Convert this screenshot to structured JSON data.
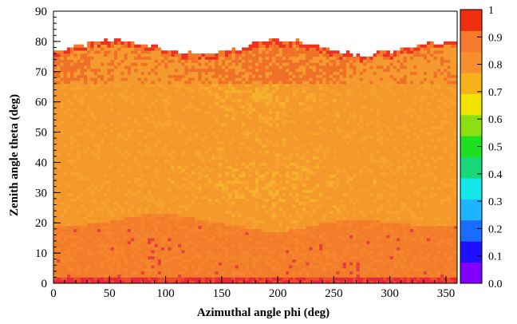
{
  "chart_data": {
    "type": "heatmap",
    "title": "",
    "xlabel": "Azimuthal angle phi (deg)",
    "ylabel": "Zenith angle theta (deg)",
    "xlim": [
      0,
      360
    ],
    "ylim": [
      0,
      90
    ],
    "x_ticks": [
      "0",
      "50",
      "100",
      "150",
      "200",
      "250",
      "300",
      "350"
    ],
    "y_ticks": [
      "0",
      "10",
      "20",
      "30",
      "40",
      "50",
      "60",
      "70",
      "80",
      "90"
    ],
    "colorbar": {
      "range": [
        0,
        1
      ],
      "tick_labels": [
        "0.0",
        "0.1",
        "0.2",
        "0.3",
        "0.4",
        "0.5",
        "0.6",
        "0.7",
        "0.8",
        "0.9",
        "1"
      ],
      "colors": [
        "#7f00ff",
        "#1e10ff",
        "#1a6cff",
        "#1fb4ff",
        "#14e8e8",
        "#18d87a",
        "#1ce020",
        "#8ae010",
        "#f2e400",
        "#f5b21a",
        "#f7902c",
        "#f57a2e",
        "#ee2e10"
      ]
    },
    "regions": [
      {
        "theta_range": [
          0,
          3
        ],
        "value_approx": 0.95
      },
      {
        "theta_range": [
          3,
          20
        ],
        "value_approx": 0.9
      },
      {
        "theta_range": [
          20,
          73
        ],
        "value_approx": 0.85
      },
      {
        "theta_range": [
          73,
          80
        ],
        "value_approx": 0.9
      }
    ]
  }
}
